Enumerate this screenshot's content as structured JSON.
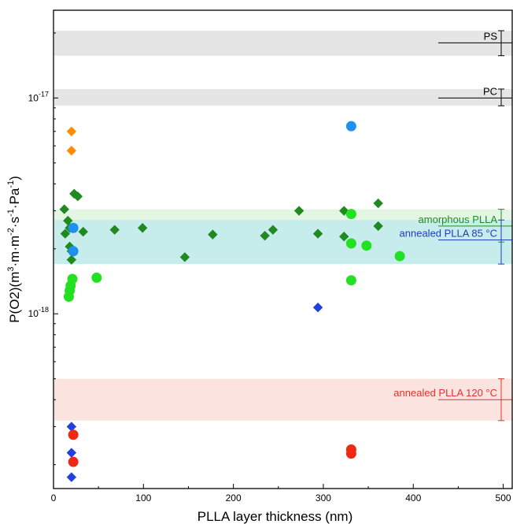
{
  "chart_data": {
    "type": "scatter",
    "xlabel": "PLLA layer thickness (nm)",
    "ylabel_parts": [
      "P(O2)(m",
      "3",
      "·m·m",
      "-2",
      "·s",
      "-1",
      "·Pa",
      "-1",
      ")"
    ],
    "x_scale": "linear",
    "y_scale": "log",
    "xlim": [
      0,
      510
    ],
    "ylim": [
      1.55e-19,
      2.55e-17
    ],
    "x_ticks": [
      0,
      100,
      200,
      300,
      400,
      500
    ],
    "x_tick_labels": [
      "0",
      "100",
      "200",
      "300",
      "400",
      "500"
    ],
    "y_ticks": [
      1e-18,
      1e-17
    ],
    "y_tick_label_base": "10",
    "y_tick_label_exponents": [
      "-18",
      "-17"
    ],
    "grid": false,
    "bands": [
      {
        "label": "PS",
        "low": 1.57e-17,
        "high": 2.05e-17,
        "center": 1.8e-17,
        "fill": "#e5e5e5",
        "line": "#000000",
        "text_color": "#000000"
      },
      {
        "label": "PC",
        "low": 9.2e-18,
        "high": 1.1e-17,
        "center": 1e-17,
        "fill": "#e5e5e5",
        "line": "#000000",
        "text_color": "#000000"
      },
      {
        "label": "amorphous PLLA",
        "low": 2.15e-18,
        "high": 3.05e-18,
        "center": 2.55e-18,
        "fill": "#e3f6e3",
        "line": "#238b23",
        "text_color": "#238b23"
      },
      {
        "label": "annealed PLLA 85 °C",
        "low": 1.7e-18,
        "high": 2.72e-18,
        "center": 2.2e-18,
        "fill": "#c6ecec",
        "line": "#1f3fbf",
        "text_color": "#1f3fbf"
      },
      {
        "label": "annealed PLLA 120 °C",
        "low": 3.2e-19,
        "high": 5e-19,
        "center": 4e-19,
        "fill": "#fbe3e0",
        "line": "#e8302a",
        "text_color": "#e8302a"
      }
    ],
    "series": [
      {
        "marker": "diamond",
        "color": "#208a20",
        "points": [
          [
            12,
            3.05e-18
          ],
          [
            13,
            2.35e-18
          ],
          [
            16,
            2.7e-18
          ],
          [
            18,
            2.5e-18
          ],
          [
            18,
            2.05e-18
          ],
          [
            20,
            1.78e-18
          ],
          [
            20,
            1.95e-18
          ],
          [
            23,
            3.6e-18
          ],
          [
            27,
            3.5e-18
          ],
          [
            33,
            2.4e-18
          ],
          [
            68,
            2.45e-18
          ],
          [
            99,
            2.5e-18
          ],
          [
            146,
            1.83e-18
          ],
          [
            177,
            2.33e-18
          ],
          [
            235,
            2.3e-18
          ],
          [
            244,
            2.45e-18
          ],
          [
            273,
            3e-18
          ],
          [
            294,
            2.35e-18
          ],
          [
            323,
            2.28e-18
          ],
          [
            323,
            3e-18
          ],
          [
            361,
            3.25e-18
          ],
          [
            361,
            2.55e-18
          ]
        ]
      },
      {
        "marker": "circle",
        "color": "#22e022",
        "points": [
          [
            17,
            1.2e-18
          ],
          [
            18,
            1.28e-18
          ],
          [
            19,
            1.35e-18
          ],
          [
            21,
            1.45e-18
          ],
          [
            48,
            1.47e-18
          ],
          [
            331,
            2.9e-18
          ],
          [
            331,
            2.12e-18
          ],
          [
            331,
            1.43e-18
          ],
          [
            348,
            2.07e-18
          ],
          [
            385,
            1.85e-18
          ]
        ]
      },
      {
        "marker": "circle",
        "color": "#1e90f0",
        "points": [
          [
            22,
            2.5e-18
          ],
          [
            22,
            1.95e-18
          ],
          [
            331,
            7.4e-18
          ]
        ]
      },
      {
        "marker": "diamond",
        "color": "#ff8c00",
        "points": [
          [
            20,
            7e-18
          ],
          [
            20,
            5.7e-18
          ]
        ]
      },
      {
        "marker": "diamond",
        "color": "#2040e0",
        "points": [
          [
            294,
            1.07e-18
          ],
          [
            20,
            3e-19
          ],
          [
            20,
            2.27e-19
          ],
          [
            20,
            1.75e-19
          ]
        ]
      },
      {
        "marker": "circle",
        "color": "#ee2a14",
        "points": [
          [
            22,
            2.75e-19
          ],
          [
            22,
            2.06e-19
          ],
          [
            331,
            2.35e-19
          ],
          [
            331,
            2.25e-19
          ]
        ]
      }
    ]
  }
}
